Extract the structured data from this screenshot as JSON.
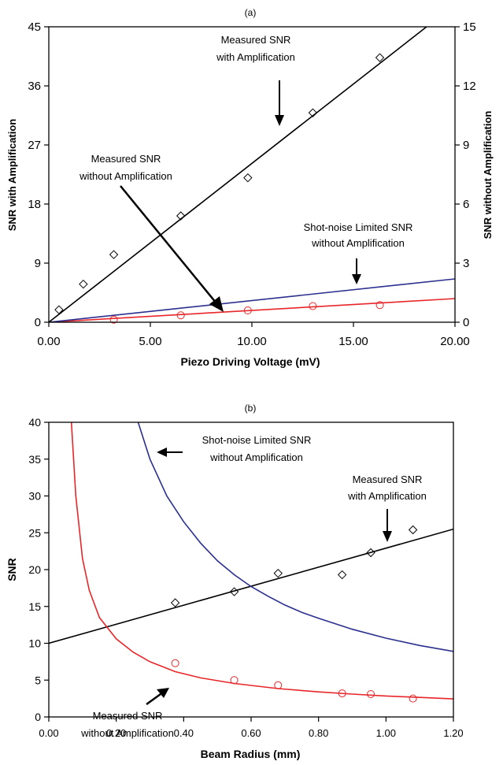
{
  "chart_data": [
    {
      "panel_label": "(a)",
      "type": "scatter",
      "xlabel": "Piezo Driving Voltage (mV)",
      "ylabel": "SNR with Amplification",
      "y2label": "SNR without Amplification",
      "xlim": [
        0,
        20
      ],
      "ylim": [
        0,
        45
      ],
      "y2lim": [
        0,
        15
      ],
      "xticks": [
        0,
        5,
        10,
        15,
        20
      ],
      "xtick_labels": [
        "0.00",
        "5.00",
        "10.00",
        "15.00",
        "20.00"
      ],
      "yticks": [
        0,
        9,
        18,
        27,
        36,
        45
      ],
      "y2ticks": [
        0,
        3,
        6,
        9,
        12,
        15
      ],
      "grid": false,
      "series": [
        {
          "name": "Measured SNR with Amplification",
          "axis": "left",
          "marker": "diamond",
          "color": "#000000",
          "x": [
            0.5,
            1.7,
            3.2,
            6.5,
            9.8,
            13.0,
            16.3
          ],
          "y": [
            1.9,
            5.8,
            10.3,
            16.2,
            22.0,
            31.9,
            40.3
          ]
        },
        {
          "name": "Measured SNR with Amplification (fit)",
          "axis": "left",
          "kind": "line",
          "color": "#000000",
          "x": [
            0,
            18.6
          ],
          "y": [
            0,
            45
          ]
        },
        {
          "name": "Measured SNR without Amplification",
          "axis": "right",
          "marker": "circle",
          "color": "#e8262a",
          "x": [
            3.2,
            6.5,
            9.8,
            13.0,
            16.3
          ],
          "y": [
            0.13,
            0.35,
            0.6,
            0.82,
            0.87
          ]
        },
        {
          "name": "Measured SNR without Amplification (fit)",
          "axis": "right",
          "kind": "line",
          "color": "#e8262a",
          "x": [
            0,
            20
          ],
          "y": [
            0,
            1.2
          ]
        },
        {
          "name": "Shot-noise Limited SNR without Amplification",
          "axis": "right",
          "kind": "line",
          "color": "#2b2f8e",
          "x": [
            0,
            20
          ],
          "y": [
            0,
            2.2
          ]
        }
      ],
      "annotations": [
        {
          "text": [
            "Measured SNR",
            "with Amplification"
          ]
        },
        {
          "text": [
            "Measured SNR",
            "without Amplification"
          ]
        },
        {
          "text": [
            "Shot-noise Limited SNR",
            "without Amplification"
          ]
        }
      ]
    },
    {
      "panel_label": "(b)",
      "type": "scatter",
      "xlabel": "Beam Radius (mm)",
      "ylabel": "SNR",
      "xlim": [
        0,
        1.2
      ],
      "ylim": [
        0,
        40
      ],
      "xticks": [
        0,
        0.2,
        0.4,
        0.6,
        0.8,
        1.0,
        1.2
      ],
      "xtick_labels": [
        "0.00",
        "0.20",
        "0.40",
        "0.60",
        "0.80",
        "1.00",
        "1.20"
      ],
      "yticks": [
        0,
        5,
        10,
        15,
        20,
        25,
        30,
        35,
        40
      ],
      "grid": false,
      "series": [
        {
          "name": "Measured SNR with Amplification",
          "marker": "diamond",
          "color": "#000000",
          "x": [
            0.375,
            0.55,
            0.68,
            0.87,
            0.955,
            1.08
          ],
          "y": [
            15.5,
            17.0,
            19.5,
            19.3,
            22.3,
            25.4
          ]
        },
        {
          "name": "Measured SNR with Amplification (fit)",
          "kind": "line",
          "color": "#000000",
          "x": [
            0,
            1.2
          ],
          "y": [
            10.0,
            25.5
          ]
        },
        {
          "name": "Measured SNR without Amplification",
          "marker": "circle",
          "color": "#e8262a",
          "x": [
            0.375,
            0.55,
            0.68,
            0.87,
            0.955,
            1.08
          ],
          "y": [
            7.3,
            5.0,
            4.3,
            3.2,
            3.1,
            2.5
          ]
        },
        {
          "name": "Measured SNR without Amplification (fit)",
          "kind": "curve",
          "color": "#e8262a",
          "x": [
            0.067,
            0.08,
            0.1,
            0.12,
            0.15,
            0.2,
            0.25,
            0.3,
            0.375,
            0.45,
            0.55,
            0.68,
            0.8,
            0.9,
            1.0,
            1.1,
            1.2
          ],
          "y": [
            40.0,
            30.0,
            21.5,
            17.2,
            13.5,
            10.6,
            8.8,
            7.5,
            6.15,
            5.3,
            4.55,
            3.85,
            3.4,
            3.1,
            2.85,
            2.65,
            2.45
          ]
        },
        {
          "name": "Shot-noise Limited SNR without Amplification",
          "kind": "curve",
          "color": "#2b2f8e",
          "x": [
            0.265,
            0.3,
            0.35,
            0.4,
            0.45,
            0.5,
            0.55,
            0.6,
            0.65,
            0.7,
            0.75,
            0.8,
            0.9,
            1.0,
            1.1,
            1.2
          ],
          "y": [
            40.0,
            35.0,
            30.0,
            26.5,
            23.6,
            21.2,
            19.3,
            17.7,
            16.4,
            15.2,
            14.2,
            13.4,
            11.9,
            10.7,
            9.7,
            8.9
          ]
        }
      ],
      "annotations": [
        {
          "text": [
            "Shot-noise Limited SNR",
            "without Amplification"
          ]
        },
        {
          "text": [
            "Measured SNR",
            "with Amplification"
          ]
        },
        {
          "text": [
            "Measured SNR",
            "without Amplification"
          ]
        }
      ]
    }
  ]
}
